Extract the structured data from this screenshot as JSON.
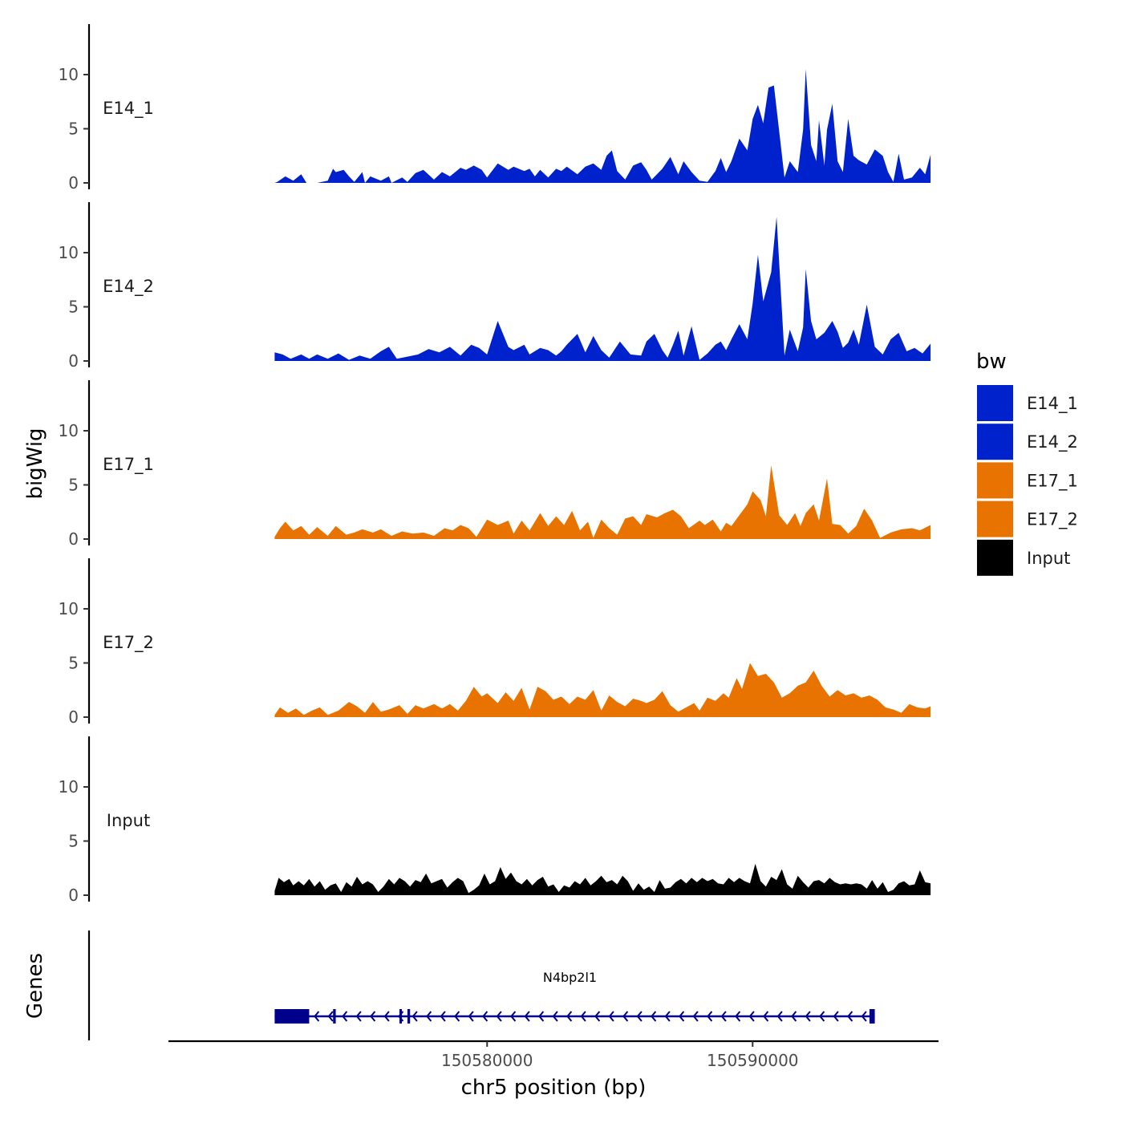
{
  "chart_data": {
    "type": "area",
    "ylabel": "bigWig",
    "xlabel": "chr5 position (bp)",
    "gene_track_label": "Genes",
    "xlim": [
      150568000,
      150597000
    ],
    "ylim": [
      0,
      14
    ],
    "yticks": [
      "0",
      "5",
      "10"
    ],
    "xticks": [
      {
        "value": 150580000,
        "label": "150580000"
      },
      {
        "value": 150590000,
        "label": "150590000"
      }
    ],
    "legend": {
      "title": "bw",
      "position": "right"
    },
    "series": [
      {
        "name": "E14_1",
        "color": "#0022CC",
        "x": [
          150572000,
          150572100,
          150572400,
          150572700,
          150573000,
          150573200,
          150573600,
          150574000,
          150574200,
          150574300,
          150574600,
          150574800,
          150575000,
          150575300,
          150575400,
          150575600,
          150576000,
          150576300,
          150576400,
          150576800,
          150577000,
          150577300,
          150577600,
          150578000,
          150578300,
          150578600,
          150579000,
          150579200,
          150579500,
          150579800,
          150580000,
          150580400,
          150580800,
          150581000,
          150581400,
          150581600,
          150581800,
          150582000,
          150582300,
          150582600,
          150582800,
          150583000,
          150583400,
          150583700,
          150584000,
          150584300,
          150584500,
          150584700,
          150584900,
          150585200,
          150585500,
          150585800,
          150586000,
          150586200,
          150586600,
          150586900,
          150587200,
          150587400,
          150587700,
          150588000,
          150588300,
          150588600,
          150588800,
          150589000,
          150589200,
          150589500,
          150589800,
          150590000,
          150590200,
          150590400,
          150590600,
          150590800,
          150591200,
          150591400,
          150591700,
          150591900,
          150592000,
          150592200,
          150592400,
          150592500,
          150592700,
          150592800,
          150593000,
          150593200,
          150593400,
          150593600,
          150593800,
          150594000,
          150594300,
          150594600,
          150594900,
          150595100,
          150595300,
          150595500,
          150595700,
          150596000,
          150596300,
          150596500,
          150596700
        ],
        "y": [
          0,
          0.1,
          0.6,
          0.2,
          0.8,
          0,
          0,
          0.2,
          1.3,
          1.0,
          1.2,
          0.6,
          0.1,
          1.0,
          0,
          0.6,
          0.2,
          0.6,
          0,
          0.5,
          0.1,
          0.9,
          1.2,
          0.3,
          1.0,
          0.6,
          1.4,
          1.2,
          1.6,
          1.2,
          0.5,
          1.8,
          1.2,
          1.5,
          1.1,
          1.3,
          0.6,
          1.2,
          0.5,
          1.3,
          1.1,
          1.5,
          0.8,
          1.5,
          1.8,
          1.2,
          2.5,
          3.0,
          1.1,
          0.3,
          1.6,
          1.9,
          1.2,
          0.3,
          1.3,
          2.4,
          0.8,
          2.0,
          1.0,
          0.2,
          0.1,
          1.1,
          2.3,
          1.0,
          2.0,
          4.1,
          3.0,
          5.9,
          7.2,
          5.5,
          8.8,
          9.0,
          0.5,
          2.0,
          1.0,
          4.9,
          10.5,
          3.5,
          2.0,
          5.8,
          1.6,
          4.9,
          7.3,
          2.0,
          1.0,
          5.9,
          2.5,
          2.1,
          1.7,
          3.1,
          2.5,
          1.0,
          0.1,
          2.7,
          0.3,
          0.5,
          1.4,
          0.8,
          2.6
        ]
      },
      {
        "name": "E14_2",
        "color": "#0022CC",
        "x": [
          150572000,
          150572300,
          150572600,
          150573000,
          150573300,
          150573600,
          150574000,
          150574400,
          150574800,
          150575200,
          150575600,
          150576000,
          150576300,
          150576600,
          150577000,
          150577400,
          150577800,
          150578200,
          150578600,
          150579000,
          150579400,
          150579700,
          150580000,
          150580400,
          150580800,
          150581000,
          150581400,
          150581600,
          150582000,
          150582300,
          150582600,
          150582800,
          150583000,
          150583400,
          150583700,
          150584000,
          150584300,
          150584600,
          150585000,
          150585400,
          150585800,
          150586000,
          150586300,
          150586600,
          150586800,
          150587000,
          150587200,
          150587400,
          150587700,
          150588000,
          150588300,
          150588600,
          150588800,
          150589000,
          150589200,
          150589500,
          150589800,
          150590000,
          150590200,
          150590400,
          150590700,
          150590900,
          150591200,
          150591400,
          150591700,
          150591900,
          150592000,
          150592200,
          150592400,
          150592700,
          150593000,
          150593200,
          150593400,
          150593600,
          150593800,
          150594000,
          150594300,
          150594600,
          150594900,
          150595200,
          150595500,
          150595800,
          150596100,
          150596400,
          150596700
        ],
        "y": [
          0.8,
          0.6,
          0.2,
          0.6,
          0.2,
          0.6,
          0.2,
          0.7,
          0.1,
          0.5,
          0.2,
          0.9,
          1.3,
          0.2,
          0.4,
          0.6,
          1.1,
          0.8,
          1.3,
          0.5,
          1.5,
          1.2,
          0.6,
          3.7,
          1.3,
          1.0,
          1.5,
          0.6,
          1.2,
          1.0,
          0.5,
          0.9,
          1.5,
          2.5,
          0.8,
          2.3,
          1.0,
          0.3,
          1.8,
          0.6,
          0.5,
          1.8,
          2.5,
          1.0,
          0.3,
          1.5,
          2.8,
          0.5,
          3.2,
          0.1,
          0.7,
          1.5,
          1.8,
          1.0,
          2.0,
          3.4,
          2.0,
          5.3,
          9.8,
          5.5,
          8.2,
          13.3,
          0.5,
          2.9,
          0.9,
          3.1,
          8.5,
          3.7,
          2.0,
          2.6,
          3.7,
          2.7,
          1.2,
          1.7,
          2.9,
          1.5,
          5.2,
          1.3,
          0.6,
          2.0,
          2.6,
          0.9,
          1.2,
          0.7,
          1.6
        ]
      },
      {
        "name": "E17_1",
        "color": "#E87300",
        "x": [
          150572000,
          150572200,
          150572400,
          150572700,
          150573000,
          150573300,
          150573600,
          150574000,
          150574300,
          150574700,
          150575000,
          150575300,
          150575700,
          150576000,
          150576400,
          150576800,
          150577200,
          150577600,
          150578000,
          150578400,
          150578700,
          150579000,
          150579300,
          150579600,
          150580000,
          150580400,
          150580800,
          150581000,
          150581300,
          150581600,
          150582000,
          150582300,
          150582600,
          150582900,
          150583200,
          150583500,
          150583800,
          150584000,
          150584300,
          150584600,
          150584900,
          150585200,
          150585500,
          150585800,
          150586000,
          150586400,
          150586700,
          150587000,
          150587300,
          150587600,
          150588000,
          150588200,
          150588500,
          150588800,
          150589000,
          150589200,
          150589500,
          150589800,
          150590000,
          150590300,
          150590500,
          150590700,
          150591000,
          150591300,
          150591600,
          150591800,
          150592000,
          150592300,
          150592500,
          150592800,
          150593000,
          150593300,
          150593600,
          150593900,
          150594200,
          150594500,
          150594800,
          150595200,
          150595600,
          150596000,
          150596300,
          150596700
        ],
        "y": [
          0.2,
          1.0,
          1.6,
          0.8,
          1.2,
          0.4,
          1.1,
          0.3,
          1.2,
          0.4,
          0.6,
          0.9,
          0.6,
          0.9,
          0.3,
          0.7,
          0.5,
          0.6,
          0.3,
          1.0,
          0.8,
          1.3,
          1.0,
          0.2,
          1.8,
          1.3,
          1.7,
          0.5,
          1.7,
          0.8,
          2.4,
          1.2,
          2.1,
          1.3,
          2.6,
          0.8,
          1.6,
          0.1,
          1.8,
          1.0,
          0.4,
          1.9,
          2.1,
          1.3,
          2.3,
          2.0,
          2.4,
          2.7,
          2.1,
          1.0,
          1.7,
          1.3,
          1.8,
          0.7,
          1.5,
          1.2,
          2.2,
          3.2,
          4.4,
          3.6,
          2.1,
          6.8,
          2.2,
          1.3,
          2.4,
          1.2,
          2.4,
          3.2,
          1.7,
          5.6,
          1.4,
          1.3,
          0.5,
          1.2,
          2.8,
          1.7,
          0.1,
          0.6,
          0.9,
          1.0,
          0.8,
          1.3
        ]
      },
      {
        "name": "E17_2",
        "color": "#E87300",
        "x": [
          150572000,
          150572200,
          150572500,
          150572800,
          150573100,
          150573400,
          150573700,
          150574000,
          150574400,
          150574800,
          150575100,
          150575400,
          150575700,
          150576000,
          150576300,
          150576700,
          150577000,
          150577300,
          150577600,
          150578000,
          150578300,
          150578600,
          150578900,
          150579200,
          150579500,
          150579800,
          150580000,
          150580400,
          150580700,
          150581000,
          150581300,
          150581600,
          150581900,
          150582200,
          150582500,
          150582800,
          150583100,
          150583400,
          150583700,
          150584000,
          150584300,
          150584600,
          150584900,
          150585200,
          150585500,
          150585800,
          150586000,
          150586300,
          150586600,
          150586900,
          150587200,
          150587500,
          150587800,
          150588000,
          150588300,
          150588600,
          150588900,
          150589100,
          150589400,
          150589600,
          150589900,
          150590200,
          150590500,
          150590800,
          150591100,
          150591400,
          150591700,
          150592000,
          150592300,
          150592600,
          150592900,
          150593200,
          150593500,
          150593800,
          150594100,
          150594400,
          150594700,
          150595000,
          150595300,
          150595600,
          150595900,
          150596200,
          150596500,
          150596700
        ],
        "y": [
          0.2,
          0.9,
          0.4,
          0.8,
          0.2,
          0.6,
          0.9,
          0.2,
          0.6,
          1.4,
          1.0,
          0.4,
          1.4,
          0.5,
          0.7,
          1.1,
          0.3,
          1.1,
          0.8,
          1.2,
          0.8,
          1.2,
          0.6,
          1.5,
          2.8,
          1.9,
          2.2,
          1.3,
          2.3,
          1.5,
          2.7,
          0.7,
          2.8,
          2.4,
          1.6,
          1.9,
          1.2,
          1.9,
          1.6,
          2.5,
          0.6,
          2.0,
          1.4,
          1.0,
          1.7,
          1.5,
          1.3,
          1.6,
          2.4,
          1.1,
          0.5,
          0.9,
          1.3,
          0.6,
          1.8,
          1.5,
          2.2,
          1.8,
          3.6,
          2.6,
          5.0,
          3.8,
          4.0,
          3.2,
          1.8,
          2.2,
          2.9,
          3.2,
          4.3,
          2.9,
          1.9,
          2.5,
          2.0,
          2.2,
          1.8,
          2.0,
          1.6,
          0.9,
          0.7,
          0.4,
          1.2,
          0.9,
          0.8,
          1.0
        ]
      },
      {
        "name": "Input",
        "color": "#000000",
        "x": [
          150572000,
          150572150,
          150572350,
          150572550,
          150572700,
          150572900,
          150573100,
          150573300,
          150573500,
          150573700,
          150573900,
          150574100,
          150574300,
          150574500,
          150574700,
          150574900,
          150575100,
          150575300,
          150575500,
          150575700,
          150575900,
          150576100,
          150576300,
          150576500,
          150576700,
          150576900,
          150577100,
          150577300,
          150577500,
          150577700,
          150577900,
          150578100,
          150578300,
          150578500,
          150578700,
          150578900,
          150579100,
          150579300,
          150579500,
          150579700,
          150579900,
          150580100,
          150580300,
          150580500,
          150580700,
          150580900,
          150581100,
          150581300,
          150581500,
          150581700,
          150581900,
          150582100,
          150582300,
          150582500,
          150582700,
          150582900,
          150583100,
          150583300,
          150583500,
          150583700,
          150583900,
          150584100,
          150584300,
          150584500,
          150584700,
          150584900,
          150585100,
          150585300,
          150585500,
          150585700,
          150585900,
          150586100,
          150586300,
          150586500,
          150586700,
          150586900,
          150587100,
          150587300,
          150587500,
          150587700,
          150587900,
          150588100,
          150588300,
          150588500,
          150588700,
          150588900,
          150589100,
          150589300,
          150589500,
          150589700,
          150589900,
          150590100,
          150590300,
          150590500,
          150590700,
          150590900,
          150591100,
          150591300,
          150591500,
          150591700,
          150591900,
          150592100,
          150592300,
          150592500,
          150592700,
          150592900,
          150593100,
          150593300,
          150593500,
          150593700,
          150593900,
          150594100,
          150594300,
          150594500,
          150594700,
          150594900,
          150595100,
          150595300,
          150595500,
          150595700,
          150595900,
          150596100,
          150596300,
          150596500,
          150596700
        ],
        "y": [
          0.4,
          1.6,
          1.2,
          1.5,
          0.9,
          1.3,
          0.9,
          1.5,
          0.8,
          1.3,
          0.5,
          0.9,
          1.1,
          0.3,
          1.2,
          0.8,
          1.7,
          1.0,
          1.3,
          1.0,
          0.3,
          0.8,
          1.5,
          1.0,
          1.6,
          1.3,
          0.8,
          1.4,
          1.2,
          2.0,
          1.1,
          1.3,
          1.5,
          0.7,
          1.2,
          1.6,
          1.3,
          0.2,
          0.5,
          0.9,
          2.0,
          1.0,
          1.3,
          2.6,
          1.5,
          2.1,
          1.3,
          1.0,
          1.5,
          0.9,
          1.4,
          1.7,
          0.8,
          1.0,
          0.3,
          0.9,
          0.7,
          1.3,
          1.0,
          1.6,
          0.9,
          1.3,
          1.8,
          1.2,
          1.4,
          1.0,
          1.8,
          1.3,
          0.4,
          1.1,
          0.5,
          0.8,
          0.3,
          1.4,
          0.6,
          0.7,
          1.2,
          1.5,
          1.1,
          1.6,
          1.2,
          1.6,
          1.3,
          1.5,
          1.1,
          1.0,
          1.6,
          1.2,
          1.6,
          1.3,
          1.1,
          2.9,
          1.3,
          0.8,
          1.7,
          1.4,
          2.4,
          1.0,
          0.6,
          1.8,
          1.2,
          0.7,
          1.3,
          1.4,
          1.1,
          1.6,
          1.2,
          1.0,
          1.1,
          1.0,
          1.1,
          1.0,
          0.6,
          1.4,
          0.6,
          1.2,
          0.3,
          0.5,
          1.1,
          1.3,
          0.9,
          1.0,
          2.3,
          1.2,
          1.1
        ]
      }
    ],
    "genes": [
      {
        "name": "N4bp2l1",
        "start": 150572000,
        "end": 150594600,
        "strand": "-",
        "exons": [
          [
            150572000,
            150573300
          ],
          [
            150574200,
            150574300
          ],
          [
            150576700,
            150576780
          ],
          [
            150577000,
            150577100
          ],
          [
            150594400,
            150594600
          ]
        ]
      }
    ]
  }
}
